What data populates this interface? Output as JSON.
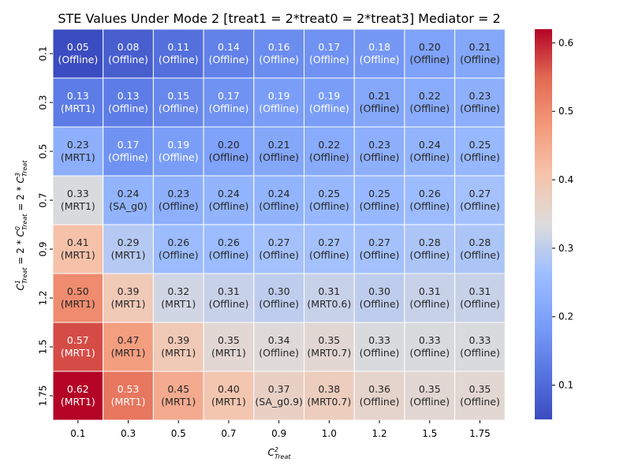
{
  "chart_data": {
    "type": "heatmap",
    "title": "STE Values Under Mode 2 [treat1 = 2*treat0 = 2*treat3] Mediator = 2",
    "x_categories": [
      "0.1",
      "0.3",
      "0.5",
      "0.7",
      "0.9",
      "1.0",
      "1.2",
      "1.5",
      "1.75"
    ],
    "y_categories": [
      "0.1",
      "0.3",
      "0.5",
      "0.7",
      "0.9",
      "1.2",
      "1.5",
      "1.75"
    ],
    "values": [
      [
        0.05,
        0.08,
        0.11,
        0.14,
        0.16,
        0.17,
        0.18,
        0.2,
        0.21
      ],
      [
        0.13,
        0.13,
        0.15,
        0.17,
        0.19,
        0.19,
        0.21,
        0.22,
        0.23
      ],
      [
        0.23,
        0.17,
        0.19,
        0.2,
        0.21,
        0.22,
        0.23,
        0.24,
        0.25
      ],
      [
        0.33,
        0.24,
        0.23,
        0.24,
        0.24,
        0.25,
        0.25,
        0.26,
        0.27
      ],
      [
        0.41,
        0.29,
        0.26,
        0.26,
        0.27,
        0.27,
        0.27,
        0.28,
        0.28
      ],
      [
        0.5,
        0.39,
        0.32,
        0.31,
        0.3,
        0.31,
        0.3,
        0.31,
        0.31
      ],
      [
        0.57,
        0.47,
        0.39,
        0.35,
        0.34,
        0.35,
        0.33,
        0.33,
        0.33
      ],
      [
        0.62,
        0.53,
        0.45,
        0.4,
        0.37,
        0.38,
        0.36,
        0.35,
        0.35
      ]
    ],
    "labels": [
      [
        "(Offline)",
        "(Offline)",
        "(Offline)",
        "(Offline)",
        "(Offline)",
        "(Offline)",
        "(Offline)",
        "(Offline)",
        "(Offline)"
      ],
      [
        "(MRT1)",
        "(Offline)",
        "(Offline)",
        "(Offline)",
        "(Offline)",
        "(Offline)",
        "(Offline)",
        "(Offline)",
        "(Offline)"
      ],
      [
        "(MRT1)",
        "(Offline)",
        "(Offline)",
        "(Offline)",
        "(Offline)",
        "(Offline)",
        "(Offline)",
        "(Offline)",
        "(Offline)"
      ],
      [
        "(MRT1)",
        "(SA_g0)",
        "(Offline)",
        "(Offline)",
        "(Offline)",
        "(Offline)",
        "(Offline)",
        "(Offline)",
        "(Offline)"
      ],
      [
        "(MRT1)",
        "(MRT1)",
        "(Offline)",
        "(Offline)",
        "(Offline)",
        "(Offline)",
        "(Offline)",
        "(Offline)",
        "(Offline)"
      ],
      [
        "(MRT1)",
        "(MRT1)",
        "(MRT1)",
        "(Offline)",
        "(Offline)",
        "(MRT0.6)",
        "(Offline)",
        "(Offline)",
        "(Offline)"
      ],
      [
        "(MRT1)",
        "(MRT1)",
        "(MRT1)",
        "(MRT1)",
        "(Offline)",
        "(MRT0.7)",
        "(Offline)",
        "(Offline)",
        "(Offline)"
      ],
      [
        "(MRT1)",
        "(MRT1)",
        "(MRT1)",
        "(MRT1)",
        "(SA_g0.9)",
        "(MRT0.7)",
        "(Offline)",
        "(Offline)",
        "(Offline)"
      ]
    ],
    "xlabel": "C²Treat",
    "ylabel": "C¹Treat = 2 * C⁰Treat = 2 * C³Treat",
    "colormap": "coolwarm",
    "color_range": [
      0.05,
      0.62
    ],
    "colorbar_ticks": [
      "0.1",
      "0.2",
      "0.3",
      "0.4",
      "0.5",
      "0.6"
    ]
  }
}
